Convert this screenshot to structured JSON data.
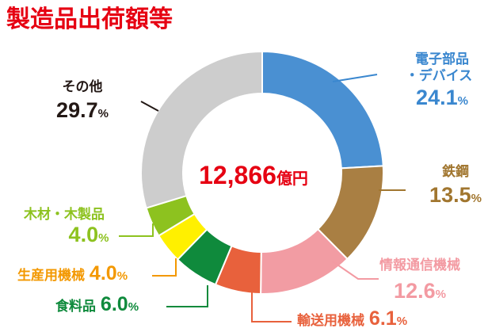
{
  "chart_data": {
    "type": "pie",
    "title": "製造品出荷額等",
    "center_value": "12,866",
    "center_unit": "億円",
    "unit_symbol": "%",
    "slices": [
      {
        "label": "電子部品・デバイス",
        "label_lines": [
          "電子部品",
          "・デバイス"
        ],
        "value": 24.1,
        "display": "24.1",
        "color": "#4A90D2"
      },
      {
        "label": "鉄鋼",
        "label_lines": [
          "鉄鋼"
        ],
        "value": 13.5,
        "display": "13.5",
        "color": "#A97F43"
      },
      {
        "label": "情報通信機械",
        "label_lines": [
          "情報通信機械"
        ],
        "value": 12.6,
        "display": "12.6",
        "color": "#F29CA3"
      },
      {
        "label": "輸送用機械",
        "label_lines": [
          "輸送用機械"
        ],
        "value": 6.1,
        "display": "6.1",
        "color": "#E8613C"
      },
      {
        "label": "食料品",
        "label_lines": [
          "食料品"
        ],
        "value": 6.0,
        "display": "6.0",
        "color": "#0F8A3C"
      },
      {
        "label": "生産用機械",
        "label_lines": [
          "生産用機械"
        ],
        "value": 4.0,
        "display": "4.0",
        "color": "#FFF000"
      },
      {
        "label": "木材・木製品",
        "label_lines": [
          "木材・木製品"
        ],
        "value": 4.0,
        "display": "4.0",
        "color": "#8DC21F"
      },
      {
        "label": "その他",
        "label_lines": [
          "その他"
        ],
        "value": 29.7,
        "display": "29.7",
        "color": "#CDCDCD"
      }
    ]
  }
}
